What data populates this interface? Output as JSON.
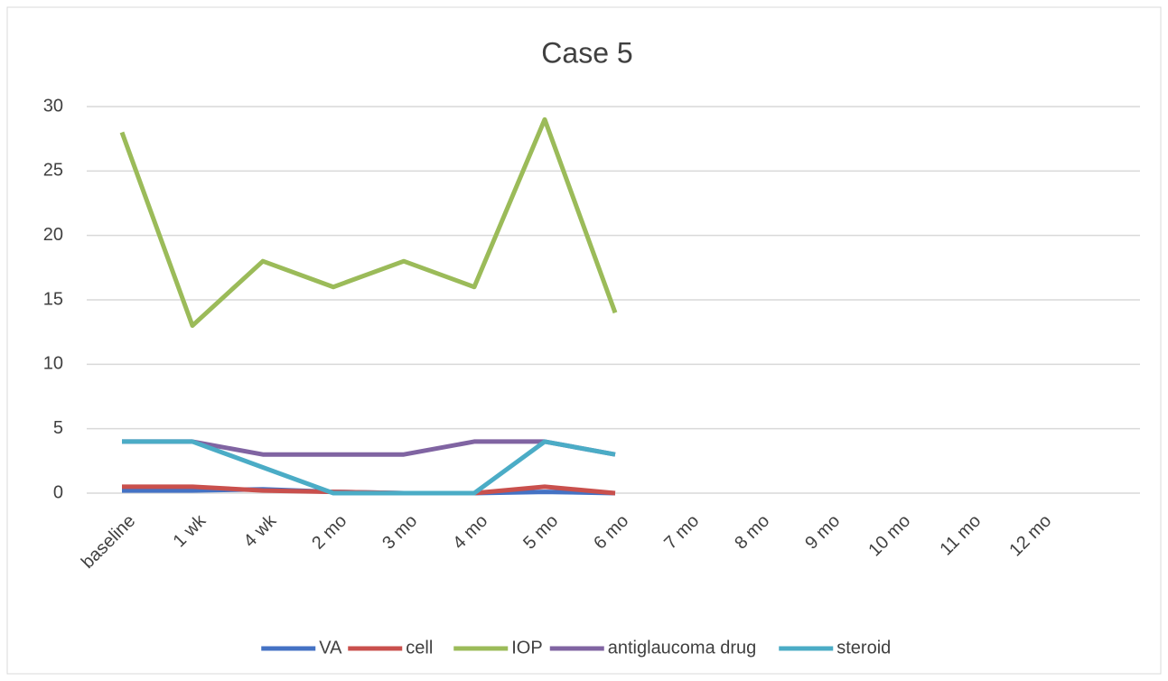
{
  "chart_data": {
    "type": "line",
    "title": "Case 5",
    "categories": [
      "baseline",
      "1 wk",
      "4 wk",
      "2 mo",
      "3 mo",
      "4 mo",
      "5 mo",
      "6 mo",
      "7 mo",
      "8 mo",
      "9 mo",
      "10 mo",
      "11 mo",
      "12 mo"
    ],
    "series": [
      {
        "name": "VA",
        "color": "#4472c4",
        "values": [
          0.2,
          0.2,
          0.3,
          0.1,
          0,
          0,
          0.1,
          0,
          null,
          null,
          null,
          null,
          null,
          null
        ]
      },
      {
        "name": "cell",
        "color": "#c9504d",
        "values": [
          0.5,
          0.5,
          0.2,
          0.1,
          0,
          0,
          0.5,
          0,
          null,
          null,
          null,
          null,
          null,
          null
        ]
      },
      {
        "name": "IOP",
        "color": "#9bbb59",
        "values": [
          28,
          13,
          18,
          16,
          18,
          16,
          29,
          14,
          null,
          null,
          null,
          null,
          null,
          null
        ]
      },
      {
        "name": "antiglaucoma drug",
        "color": "#8064a2",
        "values": [
          4,
          4,
          3,
          3,
          3,
          4,
          4,
          3,
          null,
          null,
          null,
          null,
          null,
          null
        ]
      },
      {
        "name": "steroid",
        "color": "#4bacc6",
        "values": [
          4,
          4,
          2,
          0,
          0,
          0,
          4,
          3,
          null,
          null,
          null,
          null,
          null,
          null
        ]
      }
    ],
    "ylim": [
      0,
      30
    ],
    "yticks": [
      0,
      5,
      10,
      15,
      20,
      25,
      30
    ],
    "grid": true,
    "legend": "bottom"
  }
}
